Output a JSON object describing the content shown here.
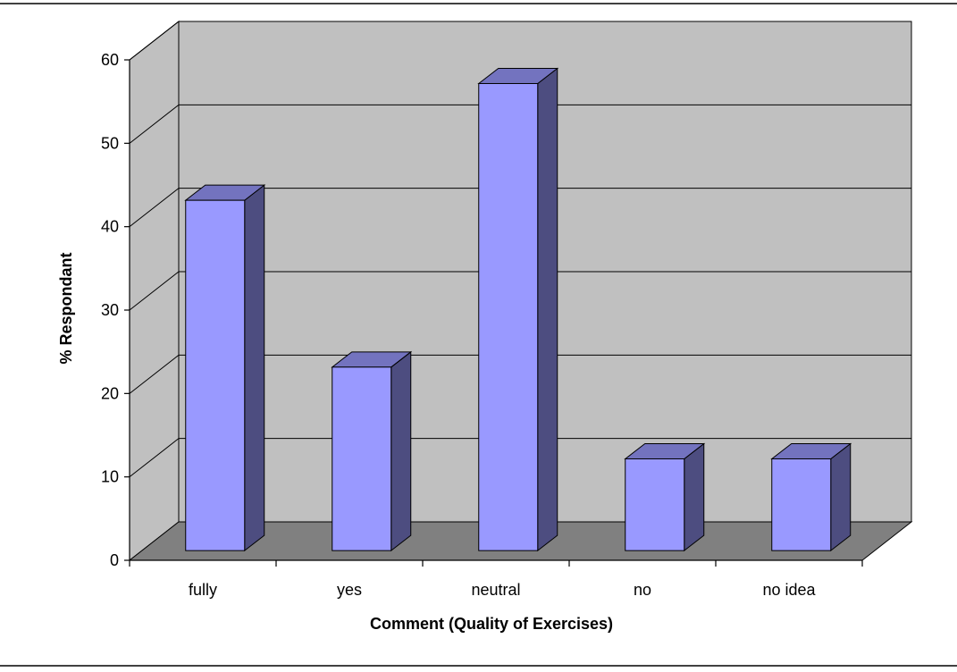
{
  "chart_data": {
    "type": "bar",
    "style": "3d-column",
    "categories": [
      "fully",
      "yes",
      "neutral",
      "no",
      "no idea"
    ],
    "values": [
      42,
      22,
      56,
      11,
      11
    ],
    "title": "",
    "xlabel": "Comment (Quality of Exercises)",
    "ylabel": "% Respondant",
    "ylim": [
      0,
      60
    ],
    "yticks": [
      0,
      10,
      20,
      30,
      40,
      50,
      60
    ],
    "grid": true,
    "legend": "none",
    "colors": {
      "bar_front": "#9999ff",
      "bar_side": "#4d4d80",
      "bar_top": "#7373bf",
      "back_wall": "#c0c0c0",
      "side_wall": "#c0c0c0",
      "floor": "#808080"
    }
  }
}
